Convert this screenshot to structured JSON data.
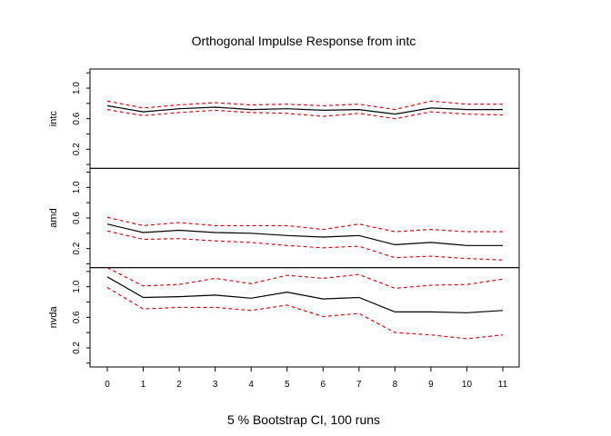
{
  "chart_data": {
    "type": "line",
    "title": "Orthogonal Impulse Response from intc",
    "subtitle": "5 % Bootstrap CI,  100 runs",
    "x": [
      0,
      1,
      2,
      3,
      4,
      5,
      6,
      7,
      8,
      9,
      10,
      11
    ],
    "x_tick_labels": [
      "0",
      "1",
      "2",
      "3",
      "4",
      "5",
      "6",
      "7",
      "8",
      "9",
      "10",
      "11"
    ],
    "ylim": [
      -0.05,
      1.25
    ],
    "y_tick_labels": [
      "0.2",
      "0.6",
      "1.0"
    ],
    "y_ticks": [
      0.2,
      0.6,
      1.0
    ],
    "line_colors": {
      "response": "#000000",
      "ci": "#cc0000"
    },
    "panels": [
      {
        "label": "intc",
        "response": [
          0.77,
          0.69,
          0.73,
          0.75,
          0.72,
          0.73,
          0.71,
          0.72,
          0.66,
          0.74,
          0.72,
          0.72
        ],
        "upper": [
          0.83,
          0.74,
          0.78,
          0.81,
          0.78,
          0.79,
          0.77,
          0.79,
          0.72,
          0.83,
          0.79,
          0.79
        ],
        "lower": [
          0.72,
          0.64,
          0.68,
          0.71,
          0.68,
          0.67,
          0.63,
          0.67,
          0.6,
          0.69,
          0.66,
          0.65
        ]
      },
      {
        "label": "amd",
        "response": [
          0.52,
          0.41,
          0.44,
          0.41,
          0.4,
          0.37,
          0.35,
          0.37,
          0.25,
          0.28,
          0.24,
          0.24
        ],
        "upper": [
          0.61,
          0.5,
          0.54,
          0.5,
          0.5,
          0.5,
          0.45,
          0.52,
          0.42,
          0.45,
          0.42,
          0.42
        ],
        "lower": [
          0.43,
          0.32,
          0.33,
          0.3,
          0.28,
          0.24,
          0.21,
          0.23,
          0.08,
          0.1,
          0.07,
          0.05
        ]
      },
      {
        "label": "nvda",
        "response": [
          1.13,
          0.86,
          0.87,
          0.89,
          0.85,
          0.93,
          0.84,
          0.86,
          0.67,
          0.67,
          0.66,
          0.69
        ],
        "upper": [
          1.25,
          1.01,
          1.03,
          1.11,
          1.04,
          1.15,
          1.11,
          1.16,
          0.98,
          1.02,
          1.03,
          1.1
        ],
        "lower": [
          0.99,
          0.71,
          0.73,
          0.73,
          0.69,
          0.76,
          0.61,
          0.65,
          0.4,
          0.37,
          0.32,
          0.37
        ]
      }
    ]
  }
}
